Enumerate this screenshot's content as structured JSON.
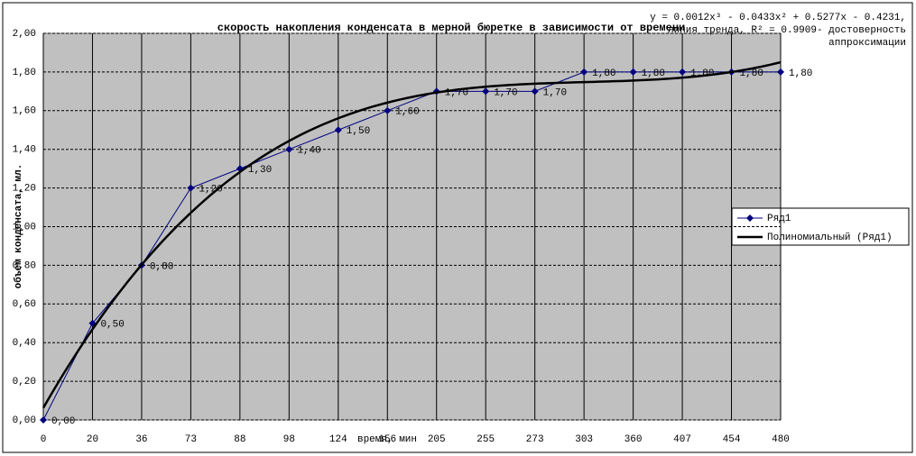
{
  "chart_data": {
    "type": "line",
    "title": "скорость накопления конденсата в мерной бюретке в зависимости от времени",
    "x_label": "время, мин",
    "y_label": "объем конденсата, мл.",
    "categories": [
      "0",
      "20",
      "36",
      "73",
      "88",
      "98",
      "124",
      "156",
      "205",
      "255",
      "273",
      "303",
      "360",
      "407",
      "454",
      "480"
    ],
    "series": [
      {
        "name": "Ряд1",
        "color": "#000080",
        "values": [
          0,
          0.5,
          0.8,
          1.2,
          1.3,
          1.4,
          1.5,
          1.6,
          1.7,
          1.7,
          1.7,
          1.8,
          1.8,
          1.8,
          1.8,
          1.8
        ],
        "value_labels": [
          "0,00",
          "0,50",
          "0,80",
          "1,20",
          "1,30",
          "1,40",
          "1,50",
          "1,60",
          "1,70",
          "1,70",
          "1,70",
          "1,80",
          "1,80",
          "1,80",
          "1,80",
          "1,80"
        ]
      }
    ],
    "trendline": {
      "name": "Полиномиальный (Ряд1)",
      "color": "#000000",
      "coefficients": [
        0.0012,
        -0.0433,
        0.5277,
        -0.4231
      ],
      "annotation": [
        "y = 0.0012x³ - 0.0433x² + 0.5277x - 0.4231,",
        "линия тренда, R² = 0.9909- достоверность",
        "аппроксимации"
      ]
    },
    "ylim": [
      0,
      2
    ],
    "yticks": [
      {
        "value": 0,
        "label": "0,00"
      },
      {
        "value": 0.2,
        "label": "0,20"
      },
      {
        "value": 0.4,
        "label": "0,40"
      },
      {
        "value": 0.6,
        "label": "0,60"
      },
      {
        "value": 0.8,
        "label": "0,80"
      },
      {
        "value": 1,
        "label": "1,00"
      },
      {
        "value": 1.2,
        "label": "1,20"
      },
      {
        "value": 1.4,
        "label": "1,40"
      },
      {
        "value": 1.6,
        "label": "1,60"
      },
      {
        "value": 1.8,
        "label": "1,80"
      },
      {
        "value": 2,
        "label": "2,00"
      }
    ],
    "grid": true,
    "legend": "right"
  }
}
